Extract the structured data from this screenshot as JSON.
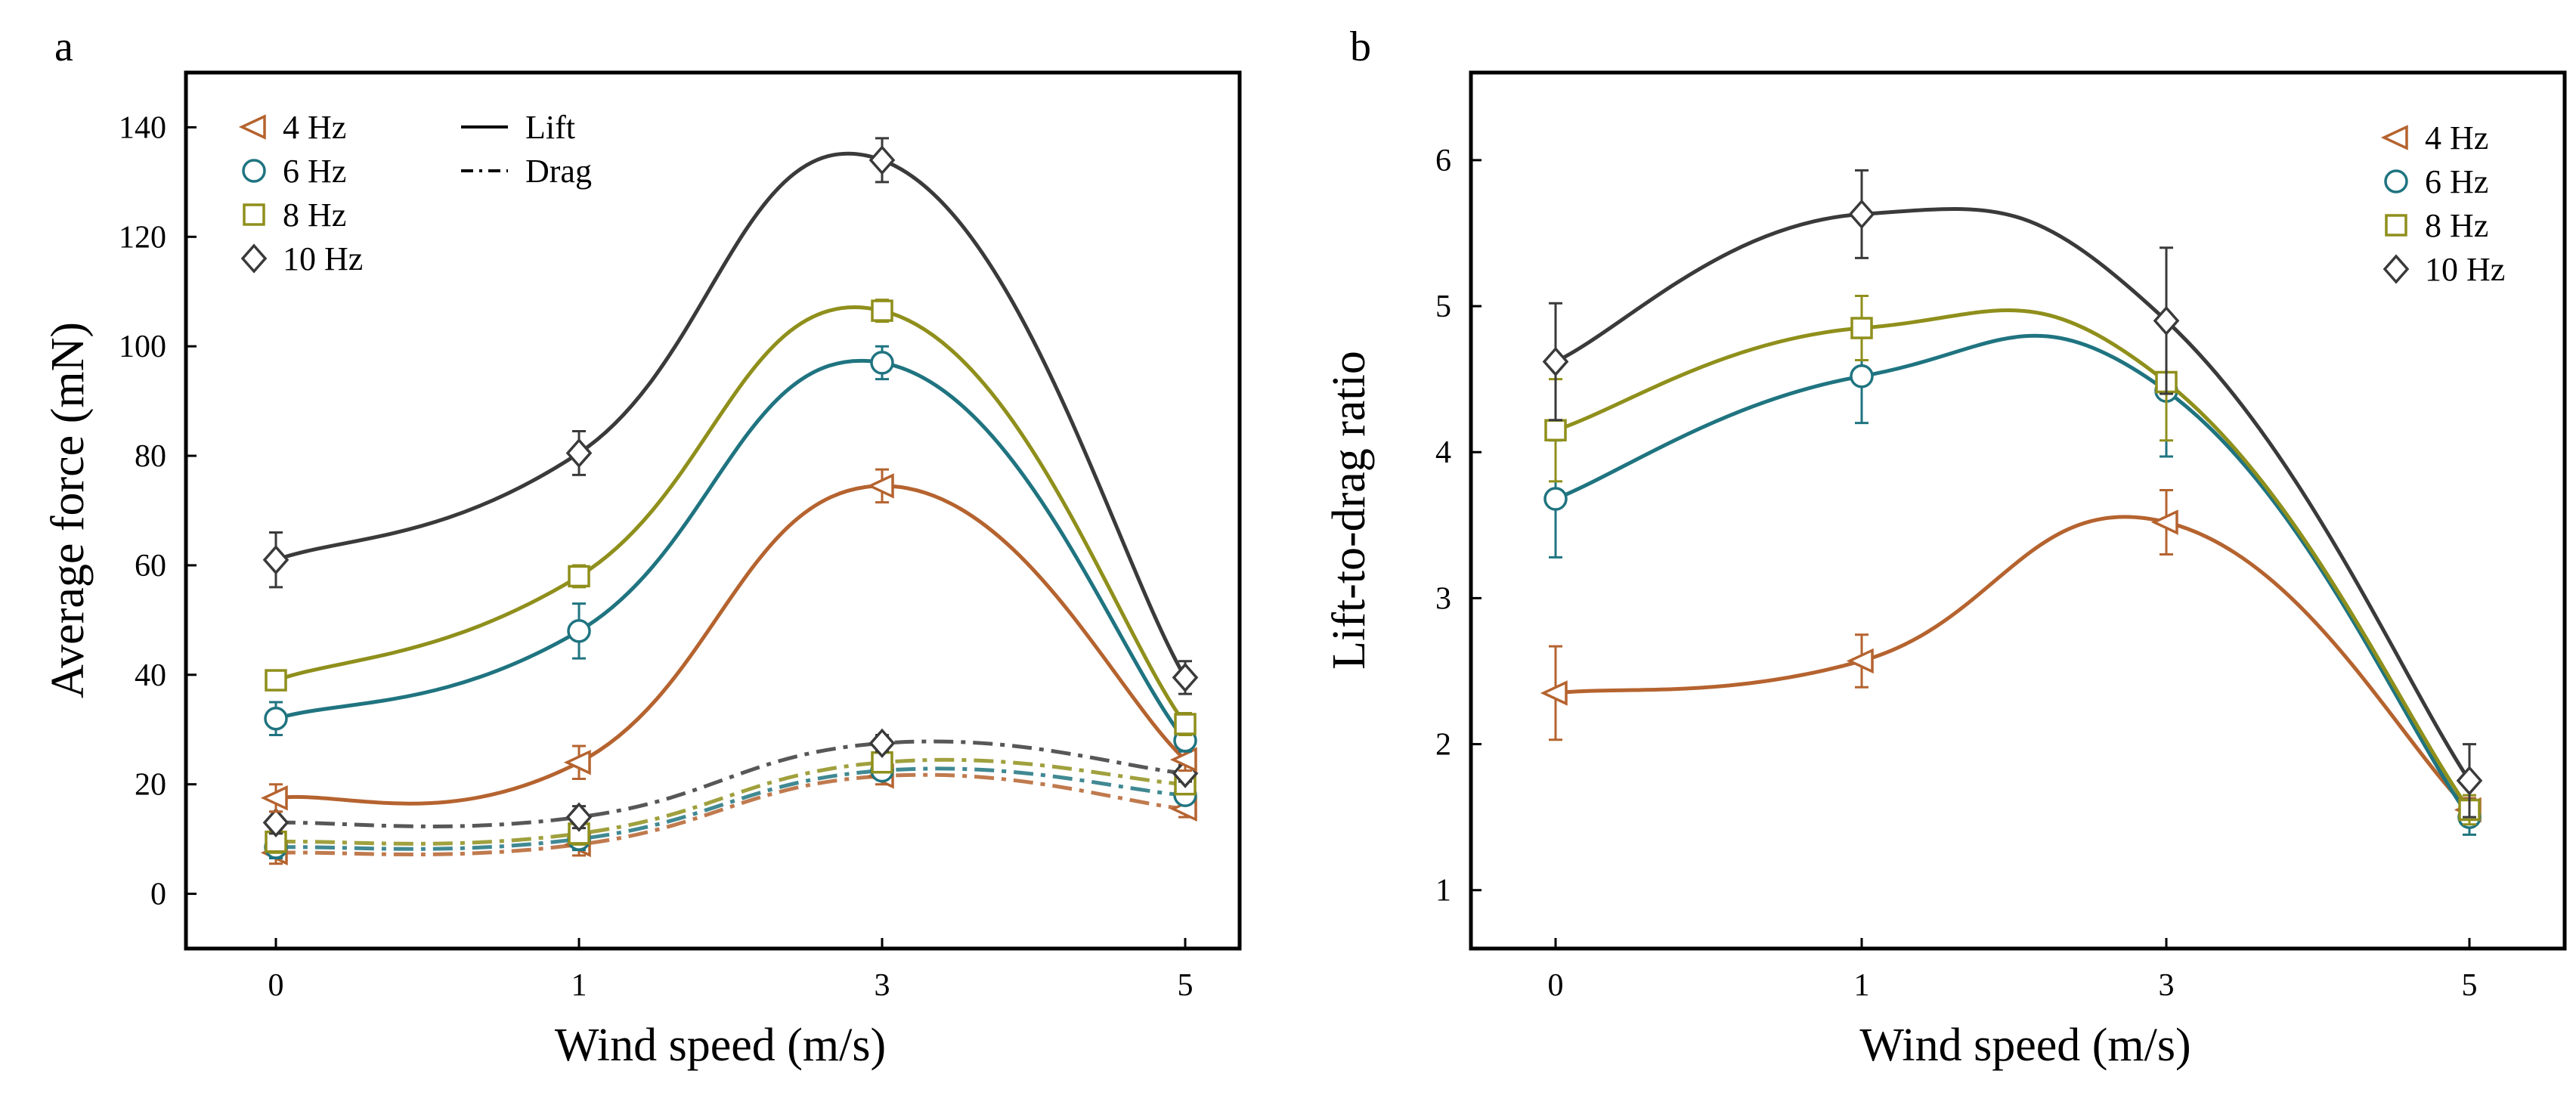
{
  "figure": {
    "panels": [
      "a",
      "b"
    ]
  },
  "chart_data": [
    {
      "type": "line",
      "panel": "a",
      "title": "",
      "xlabel": "Wind speed (m/s)",
      "ylabel": "Average force (mN)",
      "categories": [
        "0",
        "1",
        "3",
        "5"
      ],
      "ylim": [
        -10,
        150
      ],
      "yticks": [
        "0",
        "20",
        "40",
        "60",
        "80",
        "100",
        "120",
        "140"
      ],
      "grid": false,
      "legend": {
        "placement": "top-left",
        "frequencies": [
          "4 Hz",
          "6 Hz",
          "8 Hz",
          "10 Hz"
        ],
        "line_styles": [
          "Lift",
          "Drag"
        ]
      },
      "series": [
        {
          "name": "4 Hz",
          "kind": "Lift",
          "marker": "triangle-left",
          "color": "#b5632f",
          "values": [
            17.5,
            24,
            74.5,
            24.5
          ],
          "err": [
            2.5,
            3,
            3,
            2
          ]
        },
        {
          "name": "6 Hz",
          "kind": "Lift",
          "marker": "circle",
          "color": "#1f7480",
          "values": [
            32,
            48,
            97,
            28
          ],
          "err": [
            3,
            5,
            3,
            2
          ]
        },
        {
          "name": "8 Hz",
          "kind": "Lift",
          "marker": "square",
          "color": "#8f8f1c",
          "values": [
            39,
            58,
            106.5,
            31
          ],
          "err": [
            1.5,
            2,
            2,
            2
          ]
        },
        {
          "name": "10 Hz",
          "kind": "Lift",
          "marker": "diamond",
          "color": "#3a3a3a",
          "values": [
            61,
            80.5,
            134,
            39.5
          ],
          "err": [
            5,
            4,
            4,
            3
          ]
        },
        {
          "name": "4 Hz",
          "kind": "Drag",
          "marker": "triangle-left",
          "color": "#b5632f",
          "values": [
            7.5,
            9,
            21.5,
            15.5
          ],
          "err": [
            2,
            2,
            1.5,
            1.5
          ]
        },
        {
          "name": "6 Hz",
          "kind": "Drag",
          "marker": "circle",
          "color": "#1f7480",
          "values": [
            8.5,
            10,
            22.5,
            18
          ],
          "err": [
            2,
            2,
            1.5,
            1.5
          ]
        },
        {
          "name": "8 Hz",
          "kind": "Drag",
          "marker": "square",
          "color": "#8f8f1c",
          "values": [
            9.5,
            11,
            24,
            20
          ],
          "err": [
            2,
            2,
            1.5,
            1.5
          ]
        },
        {
          "name": "10 Hz",
          "kind": "Drag",
          "marker": "diamond",
          "color": "#3a3a3a",
          "values": [
            13,
            14,
            27.5,
            22
          ],
          "err": [
            2,
            2,
            1.5,
            1.5
          ]
        }
      ]
    },
    {
      "type": "line",
      "panel": "b",
      "title": "",
      "xlabel": "Wind speed (m/s)",
      "ylabel": "Lift-to-drag ratio",
      "categories": [
        "0",
        "1",
        "3",
        "5"
      ],
      "ylim": [
        0.6,
        6.6
      ],
      "yticks": [
        "1",
        "2",
        "3",
        "4",
        "5",
        "6"
      ],
      "grid": false,
      "legend": {
        "placement": "top-right",
        "frequencies": [
          "4 Hz",
          "6 Hz",
          "8 Hz",
          "10 Hz"
        ]
      },
      "series": [
        {
          "name": "4 Hz",
          "marker": "triangle-left",
          "color": "#b5632f",
          "values": [
            2.35,
            2.57,
            3.52,
            1.55
          ],
          "err": [
            0.32,
            0.18,
            0.22,
            0.08
          ]
        },
        {
          "name": "6 Hz",
          "marker": "circle",
          "color": "#1f7480",
          "values": [
            3.68,
            4.52,
            4.42,
            1.5
          ],
          "err": [
            0.4,
            0.32,
            0.45,
            0.12
          ]
        },
        {
          "name": "8 Hz",
          "marker": "square",
          "color": "#8f8f1c",
          "values": [
            4.15,
            4.85,
            4.48,
            1.55
          ],
          "err": [
            0.35,
            0.22,
            0.4,
            0.1
          ]
        },
        {
          "name": "10 Hz",
          "marker": "diamond",
          "color": "#3a3a3a",
          "values": [
            4.62,
            5.63,
            4.9,
            1.75
          ],
          "err": [
            0.4,
            0.3,
            0.5,
            0.25
          ]
        }
      ]
    }
  ]
}
